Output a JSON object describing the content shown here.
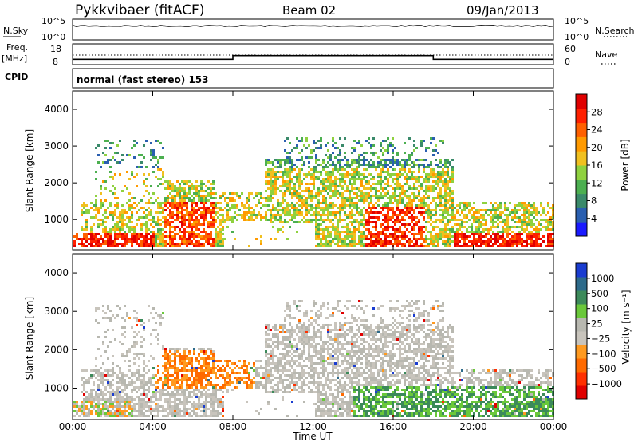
{
  "header": {
    "title": "Pykkvibaer (fitACF)",
    "beam": "Beam 02",
    "date": "09/Jan/2013"
  },
  "noise_panel": {
    "left_label": "N.Sky",
    "right_label": "N.Search",
    "left_ticks": [
      "10^5",
      "10^0"
    ],
    "right_ticks": [
      "10^5",
      "10^0"
    ]
  },
  "freq_panel": {
    "left_label_1": "Freq.",
    "left_label_2": "[MHz]",
    "right_label": "Nave",
    "left_ticks": [
      "18",
      "8"
    ],
    "right_ticks": [
      "60",
      "0"
    ]
  },
  "cpid": {
    "label": "CPID",
    "text": "normal (fast stereo) 153"
  },
  "colors": {
    "power_scale": [
      "#1a1aff",
      "#2a5fb0",
      "#3a8a6a",
      "#4caf50",
      "#8fd13f",
      "#f0c020",
      "#ff9a00",
      "#ff6000",
      "#ff2000",
      "#e00000"
    ],
    "velocity_scale": [
      "#1a3cd0",
      "#2d6a8a",
      "#3c8a5a",
      "#6ac83a",
      "#b8b8b0",
      "#c8c4bc",
      "#ff9a20",
      "#ff6a00",
      "#ff3000",
      "#e00000"
    ]
  },
  "chart_data": [
    {
      "type": "line",
      "name": "noise",
      "xlabel": "",
      "ylabel": "N.Sky",
      "scale": "log",
      "ylim": [
        1,
        100000
      ],
      "x": [
        "00:00",
        "24:00"
      ],
      "level": "near 10^5 throughout"
    },
    {
      "type": "line",
      "name": "frequency",
      "ylabel": "Freq. [MHz]",
      "ylim": [
        8,
        18
      ],
      "series": [
        {
          "x_hours": [
            0,
            8,
            8,
            18,
            18,
            24
          ],
          "values": [
            10.5,
            10.5,
            12.5,
            12.5,
            10.5,
            10.5
          ]
        }
      ]
    },
    {
      "type": "heatmap",
      "name": "power",
      "ylabel": "Slant Range [km]",
      "ylim": [
        180,
        4500
      ],
      "xlim_hours": [
        0,
        24
      ],
      "yticks": [
        "1000",
        "2000",
        "3000",
        "4000"
      ],
      "colorbar_label": "Power [dB]",
      "colorbar_ticks": [
        "4",
        "8",
        "12",
        "16",
        "20",
        "24",
        "28"
      ],
      "colorbar_range": [
        0,
        30
      ]
    },
    {
      "type": "heatmap",
      "name": "velocity",
      "ylabel": "Slant Range [km]",
      "ylim": [
        180,
        4500
      ],
      "xlim_hours": [
        0,
        24
      ],
      "yticks": [
        "1000",
        "2000",
        "3000",
        "4000"
      ],
      "colorbar_label": "Velocity [m s⁻¹]",
      "colorbar_ticks": [
        "1000",
        "500",
        "100",
        "25",
        "−25",
        "−100",
        "−500",
        "−1000"
      ]
    }
  ],
  "xaxis": {
    "ticks": [
      "00:00",
      "04:00",
      "08:00",
      "12:00",
      "16:00",
      "20:00",
      "00:00"
    ],
    "label": "Time UT"
  }
}
